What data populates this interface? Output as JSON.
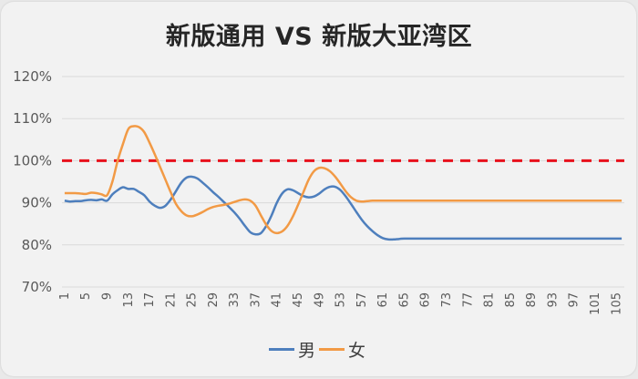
{
  "title": "新版通用 VS 新版大亚湾区",
  "colors": {
    "male": "#4e7fbd",
    "female": "#f29a45",
    "reference": "#e8101c",
    "grid": "#d9d9d9",
    "background": "#f2f2f2"
  },
  "legend": [
    {
      "label": "男",
      "color": "#4e7fbd"
    },
    {
      "label": "女",
      "color": "#f29a45"
    }
  ],
  "chart_data": {
    "type": "line",
    "title": "新版通用 VS 新版大亚湾区",
    "xlabel": "",
    "ylabel": "",
    "ylim": [
      0.7,
      1.2
    ],
    "yticks": [
      "70%",
      "80%",
      "90%",
      "100%",
      "110%",
      "120%"
    ],
    "xtick_labels": [
      "1",
      "5",
      "9",
      "13",
      "17",
      "21",
      "25",
      "29",
      "33",
      "37",
      "41",
      "45",
      "49",
      "53",
      "57",
      "61",
      "65",
      "69",
      "73",
      "77",
      "81",
      "85",
      "89",
      "93",
      "97",
      "101",
      "105"
    ],
    "x_range": [
      1,
      106
    ],
    "grid": true,
    "legend_position": "bottom",
    "reference_line": {
      "y": 1.0,
      "style": "dashed",
      "color": "#e8101c"
    },
    "series": [
      {
        "name": "男",
        "color": "#4e7fbd",
        "points": [
          [
            1,
            0.905
          ],
          [
            2,
            0.903
          ],
          [
            3,
            0.904
          ],
          [
            4,
            0.904
          ],
          [
            5,
            0.906
          ],
          [
            6,
            0.907
          ],
          [
            7,
            0.906
          ],
          [
            8,
            0.908
          ],
          [
            9,
            0.905
          ],
          [
            10,
            0.92
          ],
          [
            11,
            0.93
          ],
          [
            12,
            0.937
          ],
          [
            13,
            0.933
          ],
          [
            14,
            0.933
          ],
          [
            15,
            0.926
          ],
          [
            16,
            0.918
          ],
          [
            17,
            0.903
          ],
          [
            18,
            0.893
          ],
          [
            19,
            0.888
          ],
          [
            20,
            0.893
          ],
          [
            21,
            0.908
          ],
          [
            22,
            0.928
          ],
          [
            23,
            0.948
          ],
          [
            24,
            0.96
          ],
          [
            25,
            0.962
          ],
          [
            26,
            0.958
          ],
          [
            27,
            0.948
          ],
          [
            28,
            0.937
          ],
          [
            29,
            0.925
          ],
          [
            30,
            0.914
          ],
          [
            31,
            0.902
          ],
          [
            32,
            0.89
          ],
          [
            33,
            0.877
          ],
          [
            34,
            0.862
          ],
          [
            35,
            0.845
          ],
          [
            36,
            0.83
          ],
          [
            37,
            0.825
          ],
          [
            38,
            0.828
          ],
          [
            39,
            0.845
          ],
          [
            40,
            0.87
          ],
          [
            41,
            0.9
          ],
          [
            42,
            0.922
          ],
          [
            43,
            0.932
          ],
          [
            44,
            0.93
          ],
          [
            45,
            0.923
          ],
          [
            46,
            0.916
          ],
          [
            47,
            0.913
          ],
          [
            48,
            0.915
          ],
          [
            49,
            0.922
          ],
          [
            50,
            0.932
          ],
          [
            51,
            0.938
          ],
          [
            52,
            0.938
          ],
          [
            53,
            0.93
          ],
          [
            54,
            0.915
          ],
          [
            55,
            0.897
          ],
          [
            56,
            0.878
          ],
          [
            57,
            0.86
          ],
          [
            58,
            0.845
          ],
          [
            59,
            0.833
          ],
          [
            60,
            0.823
          ],
          [
            61,
            0.816
          ],
          [
            62,
            0.813
          ],
          [
            63,
            0.813
          ],
          [
            64,
            0.814
          ],
          [
            65,
            0.815
          ],
          [
            70,
            0.815
          ],
          [
            75,
            0.815
          ],
          [
            80,
            0.815
          ],
          [
            85,
            0.815
          ],
          [
            90,
            0.815
          ],
          [
            95,
            0.815
          ],
          [
            100,
            0.815
          ],
          [
            106,
            0.815
          ]
        ]
      },
      {
        "name": "女",
        "color": "#f29a45",
        "points": [
          [
            1,
            0.923
          ],
          [
            2,
            0.923
          ],
          [
            3,
            0.923
          ],
          [
            4,
            0.922
          ],
          [
            5,
            0.921
          ],
          [
            6,
            0.924
          ],
          [
            7,
            0.923
          ],
          [
            8,
            0.92
          ],
          [
            9,
            0.918
          ],
          [
            10,
            0.95
          ],
          [
            11,
            1.0
          ],
          [
            12,
            1.04
          ],
          [
            13,
            1.075
          ],
          [
            14,
            1.082
          ],
          [
            15,
            1.08
          ],
          [
            16,
            1.068
          ],
          [
            17,
            1.043
          ],
          [
            18,
            1.015
          ],
          [
            19,
            0.985
          ],
          [
            20,
            0.955
          ],
          [
            21,
            0.925
          ],
          [
            22,
            0.897
          ],
          [
            23,
            0.88
          ],
          [
            24,
            0.87
          ],
          [
            25,
            0.868
          ],
          [
            26,
            0.872
          ],
          [
            27,
            0.878
          ],
          [
            28,
            0.885
          ],
          [
            29,
            0.89
          ],
          [
            30,
            0.893
          ],
          [
            31,
            0.895
          ],
          [
            32,
            0.898
          ],
          [
            33,
            0.902
          ],
          [
            34,
            0.906
          ],
          [
            35,
            0.908
          ],
          [
            36,
            0.905
          ],
          [
            37,
            0.893
          ],
          [
            38,
            0.87
          ],
          [
            39,
            0.848
          ],
          [
            40,
            0.833
          ],
          [
            41,
            0.828
          ],
          [
            42,
            0.832
          ],
          [
            43,
            0.845
          ],
          [
            44,
            0.867
          ],
          [
            45,
            0.895
          ],
          [
            46,
            0.925
          ],
          [
            47,
            0.955
          ],
          [
            48,
            0.975
          ],
          [
            49,
            0.983
          ],
          [
            50,
            0.982
          ],
          [
            51,
            0.975
          ],
          [
            52,
            0.962
          ],
          [
            53,
            0.945
          ],
          [
            54,
            0.927
          ],
          [
            55,
            0.913
          ],
          [
            56,
            0.905
          ],
          [
            57,
            0.903
          ],
          [
            58,
            0.904
          ],
          [
            59,
            0.905
          ],
          [
            60,
            0.905
          ],
          [
            65,
            0.905
          ],
          [
            70,
            0.905
          ],
          [
            75,
            0.905
          ],
          [
            80,
            0.905
          ],
          [
            85,
            0.905
          ],
          [
            90,
            0.905
          ],
          [
            95,
            0.905
          ],
          [
            100,
            0.905
          ],
          [
            106,
            0.905
          ]
        ]
      }
    ]
  }
}
